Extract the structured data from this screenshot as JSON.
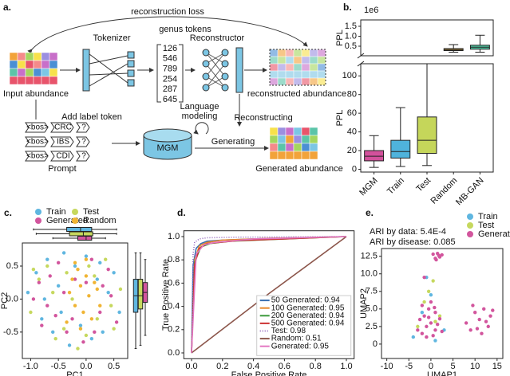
{
  "diagram": {
    "label": "a.",
    "loss": "reconstruction loss",
    "tokenizer": "Tokenizer",
    "tokens_title": "genus tokens",
    "reconstructor": "Reconstructor",
    "tokens": [
      "126",
      "546",
      "789",
      "254",
      "287",
      "645"
    ],
    "input": "Input abundance",
    "reconstructed": "reconstructed abundance",
    "add_label": "Add label token",
    "language": "Language",
    "modeling": "modeling",
    "reconstructing": "Reconstructing",
    "model": "MGM",
    "generating": "Generating",
    "prompt": "Prompt",
    "generated": "Generated abundance",
    "prompts": [
      [
        "<bos>",
        "CRC",
        "?"
      ],
      [
        "<bos>",
        "IBS",
        "?"
      ],
      [
        "<bos>",
        "CDI",
        "?"
      ]
    ]
  },
  "chart_data": [
    {
      "type": "box",
      "panel_label": "b.",
      "ylabel": "PPL",
      "offset_label": "1e6",
      "categories": [
        "MGM",
        "Train",
        "Test",
        "Random",
        "MB-GAN"
      ],
      "ylim": [
        -3,
        113
      ],
      "yticks": [
        0,
        20,
        40,
        60,
        80,
        100
      ],
      "y2lim": [
        0.02,
        1.82
      ],
      "y2ticks": [
        0.5,
        {
          "value": 1,
          "label": "1.0"
        },
        1.5
      ],
      "boxes": [
        {
          "whislo": 2,
          "q1": 9,
          "med": 14,
          "q3": 20,
          "whishi": 36,
          "color": "#d3519c",
          "axis": "y"
        },
        {
          "whislo": 3,
          "q1": 12,
          "med": 19,
          "q3": 31,
          "whishi": 66,
          "color": "#4fb3dc",
          "axis": "y"
        },
        {
          "whislo": 4,
          "q1": 17,
          "med": 31,
          "q3": 56,
          "whishi": 113,
          "color": "#c5d65a",
          "axis": "y"
        },
        {
          "whislo": 0.2,
          "q1": 0.28,
          "med": 0.33,
          "q3": 0.38,
          "whishi": 0.58,
          "color": "#f0b840",
          "axis": "y2"
        },
        {
          "whislo": 0.2,
          "q1": 0.35,
          "med": 0.45,
          "q3": 0.55,
          "whishi": 1.05,
          "color": "#4fc4a0",
          "axis": "y2"
        }
      ]
    },
    {
      "type": "scatter",
      "panel_label": "c.",
      "xlabel": "PC1",
      "ylabel": "PC2",
      "legend": "upper center",
      "xlim": [
        -1.15,
        0.75
      ],
      "ylim": [
        -0.9,
        0.85
      ],
      "xticks": [
        {
          "value": -1,
          "label": "-1.0"
        },
        -0.5,
        {
          "value": 0,
          "label": "0.0"
        },
        0.5
      ],
      "yticks": [
        -0.5,
        {
          "value": 0,
          "label": "0.0"
        },
        0.5
      ],
      "series": [
        {
          "name": "Train",
          "color": "#5fb6e0",
          "x": [
            -1.05,
            -0.9,
            -0.8,
            -0.7,
            -0.6,
            -0.5,
            -0.4,
            -0.3,
            -0.2,
            -0.1,
            0.0,
            0.1,
            0.2,
            0.3,
            0.4,
            0.5,
            0.6,
            -0.75,
            -0.45,
            0.25
          ],
          "values": [
            0.1,
            0.4,
            -0.3,
            0.6,
            -0.5,
            0.2,
            0.7,
            -0.7,
            0.5,
            -0.4,
            0.65,
            -0.6,
            0.3,
            -0.5,
            0.1,
            0.4,
            -0.2,
            0.0,
            -0.2,
            0.55
          ]
        },
        {
          "name": "Test",
          "color": "#c6d85e",
          "x": [
            -1.0,
            -0.85,
            -0.7,
            -0.55,
            -0.35,
            -0.15,
            0.05,
            0.2,
            0.35,
            0.5,
            0.62,
            -0.6,
            -0.25,
            0.15,
            0.45,
            -0.95,
            -0.4,
            0.0
          ],
          "values": [
            -0.2,
            0.3,
            0.5,
            -0.6,
            0.4,
            -0.75,
            0.5,
            -0.3,
            0.6,
            -0.45,
            0.15,
            0.1,
            0.0,
            0.35,
            -0.1,
            0.45,
            -0.45,
            -0.55
          ]
        },
        {
          "name": "Generated",
          "color": "#d2559d",
          "x": [
            -0.95,
            -0.8,
            -0.65,
            -0.5,
            -0.35,
            -0.2,
            -0.05,
            0.1,
            0.25,
            0.4,
            0.55,
            -0.7,
            -0.4,
            0.0,
            0.3,
            -0.25,
            0.15,
            -0.55,
            0.45,
            -0.85
          ],
          "values": [
            0.0,
            -0.4,
            0.35,
            0.55,
            -0.5,
            0.3,
            -0.65,
            0.6,
            -0.2,
            0.45,
            -0.35,
            -0.1,
            0.1,
            0.25,
            0.2,
            -0.3,
            -0.5,
            -0.25,
            0.05,
            0.25
          ]
        },
        {
          "name": "Random",
          "color": "#f0b433",
          "x": [
            -0.3,
            -0.25,
            -0.2,
            -0.15,
            -0.1,
            -0.05,
            0.0,
            0.05,
            0.1,
            0.15,
            -0.35,
            -0.2,
            0.2,
            0.25,
            -0.1,
            0.0
          ],
          "values": [
            0.1,
            0.3,
            -0.1,
            0.45,
            0.2,
            -0.2,
            0.35,
            0.05,
            -0.3,
            0.25,
            -0.35,
            0.55,
            0.15,
            -0.1,
            -0.45,
            0.6
          ]
        }
      ],
      "x_boxes": [
        {
          "series": 0,
          "whislo": -0.95,
          "q1": -0.35,
          "med": -0.1,
          "q3": 0.1,
          "whishi": 0.55
        },
        {
          "series": 1,
          "whislo": -0.9,
          "q1": -0.3,
          "med": -0.05,
          "q3": 0.12,
          "whishi": 0.55
        },
        {
          "series": 2,
          "whislo": -0.6,
          "q1": -0.15,
          "med": 0.0,
          "q3": 0.1,
          "whishi": 0.35
        }
      ],
      "y_boxes": [
        {
          "series": 0,
          "whislo": -0.75,
          "q1": -0.2,
          "med": 0.05,
          "q3": 0.3,
          "whishi": 0.7
        },
        {
          "series": 1,
          "whislo": -0.7,
          "q1": -0.15,
          "med": 0.05,
          "q3": 0.3,
          "whishi": 0.7
        },
        {
          "series": 2,
          "whislo": -0.55,
          "q1": -0.05,
          "med": 0.1,
          "q3": 0.25,
          "whishi": 0.6
        }
      ]
    },
    {
      "type": "line",
      "panel_label": "d.",
      "xlabel": "False Positive Rate",
      "ylabel": "True Positive Rate",
      "legend": "lower right",
      "xlim": [
        -0.05,
        1.05
      ],
      "ylim": [
        -0.05,
        1.05
      ],
      "xticks": [
        {
          "value": 0,
          "label": "0.0"
        },
        0.2,
        0.4,
        0.6,
        0.8,
        {
          "value": 1,
          "label": "1.0"
        }
      ],
      "yticks": [
        {
          "value": 0,
          "label": "0.0"
        },
        0.2,
        0.4,
        0.6,
        0.8,
        {
          "value": 1,
          "label": "1.0"
        }
      ],
      "series": [
        {
          "name": "50 Generated: 0.94",
          "color": "#3a6fb0",
          "x": [
            0,
            0.01,
            0.03,
            0.06,
            0.1,
            0.2,
            0.5,
            1
          ],
          "values": [
            0,
            0.75,
            0.9,
            0.94,
            0.96,
            0.97,
            0.985,
            1
          ]
        },
        {
          "name": "100 Generated: 0.95",
          "color": "#e8892b",
          "x": [
            0,
            0.02,
            0.05,
            0.1,
            0.2,
            0.5,
            1
          ],
          "values": [
            0,
            0.8,
            0.92,
            0.95,
            0.97,
            0.985,
            1
          ]
        },
        {
          "name": "200 Generated: 0.94",
          "color": "#3a9a3a",
          "x": [
            0,
            0.02,
            0.06,
            0.12,
            0.25,
            0.6,
            1
          ],
          "values": [
            0,
            0.78,
            0.91,
            0.94,
            0.96,
            0.98,
            1
          ]
        },
        {
          "name": "500 Generated: 0.94",
          "color": "#cc3333",
          "x": [
            0,
            0.02,
            0.05,
            0.1,
            0.3,
            0.6,
            1
          ],
          "values": [
            0,
            0.76,
            0.9,
            0.94,
            0.965,
            0.98,
            1
          ]
        },
        {
          "name": "Test: 0.98",
          "color": "#9467bd",
          "linestyle": "dotted",
          "x": [
            0,
            0.01,
            0.02,
            0.05,
            0.1,
            0.3,
            1
          ],
          "values": [
            0,
            0.85,
            0.95,
            0.98,
            0.99,
            0.995,
            1
          ]
        },
        {
          "name": "Random: 0.51",
          "color": "#8c564b",
          "x": [
            0,
            0.5,
            1
          ],
          "values": [
            0,
            0.51,
            1
          ]
        },
        {
          "name": "Generated: 0.95",
          "color": "#e377c2",
          "x": [
            0,
            0.03,
            0.08,
            0.15,
            0.4,
            1
          ],
          "values": [
            0,
            0.85,
            0.93,
            0.95,
            0.98,
            1
          ]
        }
      ]
    },
    {
      "type": "scatter",
      "panel_label": "e.",
      "xlabel": "UMAP1",
      "ylabel": "UMAP2",
      "legend": "upper right",
      "annotations": [
        "ARI by data: 5.4E-4",
        "ARI by disease: 0.085"
      ],
      "xlim": [
        -11.2,
        16.3
      ],
      "ylim": [
        -2.05,
        13.6
      ],
      "xticks": [
        -10,
        -5,
        0,
        5,
        10,
        15
      ],
      "yticks": [
        0,
        2.5,
        {
          "value": 5,
          "label": "5.0"
        },
        7.5,
        {
          "value": 10,
          "label": "10.0"
        },
        12.5
      ],
      "series": [
        {
          "name": "Train",
          "color": "#5fb6e0",
          "x": [
            -4,
            -2,
            0,
            1,
            -1,
            3
          ],
          "values": [
            1,
            4.5,
            7,
            0.5,
            9.5,
            2
          ]
        },
        {
          "name": "Test",
          "color": "#c6d85e",
          "x": [
            -3,
            -0.5,
            0.5,
            2,
            -1.5,
            1
          ],
          "values": [
            2.5,
            7.5,
            9,
            4,
            6,
            3.2
          ]
        },
        {
          "name": "Generated",
          "color": "#d2559d",
          "x": [
            0.5,
            1,
            1.5,
            2,
            2.5,
            1.2,
            1.8,
            -3,
            -2.5,
            -2,
            -1.5,
            -1,
            -0.5,
            0,
            0.5,
            1,
            1.5,
            2,
            -2,
            -1,
            0,
            1,
            2.5,
            -0.5,
            0.8,
            8,
            9,
            10,
            11,
            12,
            13,
            13.5,
            9.5,
            11.5,
            12.5,
            10.5,
            14,
            -1.5
          ],
          "values": [
            12.8,
            12.2,
            12.9,
            12.4,
            12.7,
            12.0,
            12.6,
            2,
            3.5,
            1.5,
            4,
            2.5,
            5,
            3,
            1.2,
            4.5,
            2.8,
            3.6,
            5.5,
            1,
            6,
            2,
            1.8,
            3.8,
            5.2,
            3,
            2,
            4.5,
            3.5,
            5,
            2.5,
            4,
            5.5,
            1.5,
            3.2,
            2.2,
            4.8,
            9.5
          ]
        }
      ]
    }
  ]
}
